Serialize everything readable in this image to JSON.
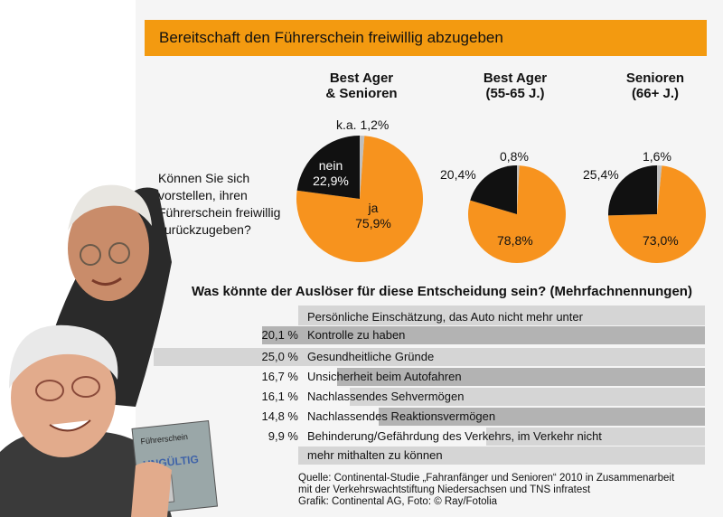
{
  "title": "Bereitschaft den Führerschein freiwillig abzugeben",
  "question": "Können Sie sich vorstellen, ihren Führerschein freiwillig zurückzugeben?",
  "colors": {
    "ja": "#f7931e",
    "nein": "#111111",
    "ka": "#bfbfbf",
    "title_bar": "#f39a10"
  },
  "chart_data": [
    {
      "type": "pie",
      "title": "Best Ager & Senioren",
      "title_lines": [
        "Best Ager",
        "& Senioren"
      ],
      "slices": [
        {
          "label": "ja",
          "value": 75.9,
          "text": "75,9%"
        },
        {
          "label": "nein",
          "value": 22.9,
          "text": "22,9%"
        },
        {
          "label": "k.a.",
          "value": 1.2,
          "text": "1,2%"
        }
      ],
      "labels": {
        "ja": "ja",
        "ja_value": "75,9%",
        "nein": "nein",
        "nein_value": "22,9%",
        "ka": "k.a. 1,2%"
      }
    },
    {
      "type": "pie",
      "title": "Best Ager (55-65 J.)",
      "title_lines": [
        "Best Ager",
        "(55-65 J.)"
      ],
      "slices": [
        {
          "label": "ja",
          "value": 78.8,
          "text": "78,8%"
        },
        {
          "label": "nein",
          "value": 20.4,
          "text": "20,4%"
        },
        {
          "label": "k.a.",
          "value": 0.8,
          "text": "0,8%"
        }
      ]
    },
    {
      "type": "pie",
      "title": "Senioren (66+ J.)",
      "title_lines": [
        "Senioren",
        "(66+ J.)"
      ],
      "slices": [
        {
          "label": "ja",
          "value": 73.0,
          "text": "73,0%"
        },
        {
          "label": "nein",
          "value": 25.4,
          "text": "25,4%"
        },
        {
          "label": "k.a.",
          "value": 1.6,
          "text": "1,6%"
        }
      ]
    },
    {
      "type": "bar",
      "title": "Was könnte der Auslöser für diese Entscheidung sein? (Mehrfachnennungen)",
      "categories": [
        "Persönliche Einschätzung, das Auto nicht mehr unter Kontrolle zu haben",
        "Gesundheitliche Gründe",
        "Unsicherheit beim Autofahren",
        "Nachlassendes Sehvermögen",
        "Nachlassendes Reaktionsvermögen",
        "Behinderung/Gefährdung des Verkehrs, im Verkehr nicht mehr mithalten zu können"
      ],
      "values": [
        20.1,
        25.0,
        16.7,
        16.1,
        14.8,
        9.9
      ],
      "value_labels": [
        "20,1 %",
        "25,0 %",
        "16,7 %",
        "16,1 %",
        "14,8 %",
        "9,9 %"
      ],
      "category_lines": [
        [
          "Persönliche Einschätzung, das Auto nicht mehr unter",
          "Kontrolle zu haben"
        ],
        [
          "Gesundheitliche Gründe"
        ],
        [
          "Unsicherheit beim Autofahren"
        ],
        [
          "Nachlassendes Sehvermögen"
        ],
        [
          "Nachlassendes Reaktionsvermögen"
        ],
        [
          "Behinderung/Gefährdung des Verkehrs, im Verkehr nicht",
          "mehr mithalten zu können"
        ]
      ]
    }
  ],
  "source": {
    "line1": "Quelle: Continental-Studie „Fahranfänger und Senioren“ 2010 in Zusammenarbeit",
    "line2": "mit der Verkehrswachtstiftung Niedersachsen und TNS infratest",
    "line3": "Grafik: Continental AG, Foto: © Ray/Fotolia"
  },
  "photo": {
    "card_title": "Führerschein",
    "card_stamp": "UNGÜLTIG"
  }
}
